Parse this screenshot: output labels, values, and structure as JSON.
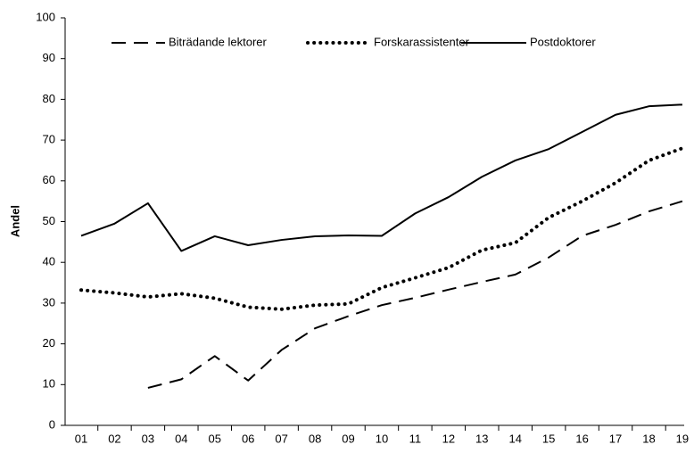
{
  "chart_data": {
    "type": "line",
    "y_label": "Andel",
    "categories": [
      "01",
      "02",
      "03",
      "04",
      "05",
      "06",
      "07",
      "08",
      "09",
      "10",
      "11",
      "12",
      "13",
      "14",
      "15",
      "16",
      "17",
      "18",
      "19"
    ],
    "series": [
      {
        "name": "Biträdande lektorer",
        "color": "#000000",
        "style": "dashed",
        "values": [
          null,
          null,
          9.2,
          11.3,
          17,
          11,
          18.5,
          23.8,
          26.8,
          29.5,
          31.3,
          33.3,
          35.2,
          37,
          41.2,
          46.5,
          49.2,
          52.5,
          55
        ]
      },
      {
        "name": "Forskarassistenter",
        "color": "#000000",
        "style": "dotted",
        "values": [
          33.2,
          32.5,
          31.5,
          32.3,
          31.2,
          29,
          28.5,
          29.5,
          29.8,
          33.8,
          36.2,
          38.7,
          43,
          44.8,
          51,
          55,
          59.5,
          65,
          68
        ]
      },
      {
        "name": "Postdoktorer",
        "color": "#000000",
        "style": "solid",
        "values": [
          46.5,
          49.5,
          54.5,
          42.8,
          46.4,
          44.2,
          45.5,
          46.4,
          46.6,
          46.5,
          52,
          56,
          61,
          65,
          67.8,
          72,
          76.2,
          78.3,
          78.7
        ]
      }
    ],
    "ylim": [
      0,
      100
    ],
    "yticks": [
      0,
      10,
      20,
      30,
      40,
      50,
      60,
      70,
      80,
      90,
      100
    ],
    "grid": false,
    "legend": "top"
  }
}
